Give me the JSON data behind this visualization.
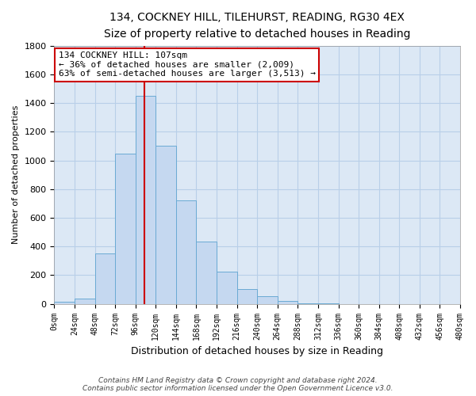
{
  "title": "134, COCKNEY HILL, TILEHURST, READING, RG30 4EX",
  "subtitle": "Size of property relative to detached houses in Reading",
  "xlabel": "Distribution of detached houses by size in Reading",
  "ylabel": "Number of detached properties",
  "bin_edges": [
    0,
    24,
    48,
    72,
    96,
    120,
    144,
    168,
    192,
    216,
    240,
    264,
    288,
    312,
    336,
    360,
    384,
    408,
    432,
    456,
    480
  ],
  "bin_heights": [
    15,
    35,
    350,
    1050,
    1450,
    1100,
    720,
    435,
    225,
    105,
    55,
    20,
    5,
    2,
    1,
    0,
    0,
    0,
    0,
    0
  ],
  "bar_color": "#c5d8f0",
  "bar_edgecolor": "#6aaad4",
  "vline_x": 107,
  "vline_color": "#cc0000",
  "ylim": [
    0,
    1800
  ],
  "xlim": [
    0,
    480
  ],
  "annotation_text": "134 COCKNEY HILL: 107sqm\n← 36% of detached houses are smaller (2,009)\n63% of semi-detached houses are larger (3,513) →",
  "annotation_box_color": "#ffffff",
  "annotation_box_edgecolor": "#cc0000",
  "footer_line1": "Contains HM Land Registry data © Crown copyright and database right 2024.",
  "footer_line2": "Contains public sector information licensed under the Open Government Licence v3.0.",
  "background_color": "#ffffff",
  "plot_bg_color": "#dce8f5",
  "grid_color": "#b8cfe8",
  "tick_labels": [
    "0sqm",
    "24sqm",
    "48sqm",
    "72sqm",
    "96sqm",
    "120sqm",
    "144sqm",
    "168sqm",
    "192sqm",
    "216sqm",
    "240sqm",
    "264sqm",
    "288sqm",
    "312sqm",
    "336sqm",
    "360sqm",
    "384sqm",
    "408sqm",
    "432sqm",
    "456sqm",
    "480sqm"
  ],
  "title_fontsize": 10,
  "subtitle_fontsize": 9,
  "ylabel_fontsize": 8,
  "xlabel_fontsize": 9,
  "tick_fontsize": 7,
  "annotation_fontsize": 8,
  "footer_fontsize": 6.5
}
